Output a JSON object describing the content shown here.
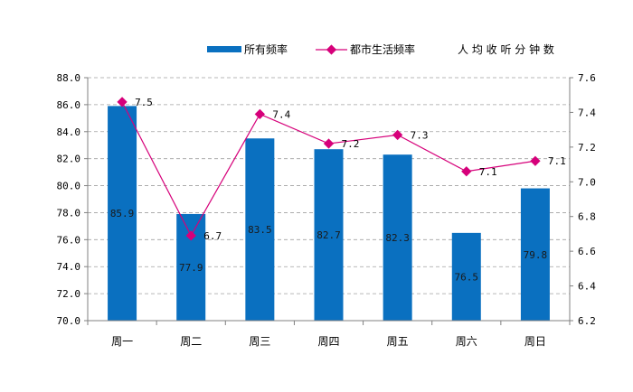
{
  "chart_data": {
    "type": "bar+line",
    "categories": [
      "周一",
      "周二",
      "周三",
      "周四",
      "周五",
      "周六",
      "周日"
    ],
    "series": [
      {
        "name": "所有频率",
        "type": "bar",
        "axis": "left",
        "color": "#0a70c0",
        "values": [
          85.9,
          77.9,
          83.5,
          82.7,
          82.3,
          76.5,
          79.8
        ],
        "value_labels": [
          "85.9",
          "77.9",
          "83.5",
          "82.7",
          "82.3",
          "76.5",
          "79.8"
        ]
      },
      {
        "name": "都市生活频率",
        "type": "line",
        "axis": "right",
        "color": "#d6007a",
        "values": [
          7.46,
          6.69,
          7.39,
          7.22,
          7.27,
          7.06,
          7.12
        ],
        "value_labels": [
          "7.5",
          "6.7",
          "7.4",
          "7.2",
          "7.3",
          "7.1",
          "7.1"
        ]
      }
    ],
    "left_axis": {
      "range": [
        70,
        88
      ],
      "ticks": [
        "70.0",
        "72.0",
        "74.0",
        "76.0",
        "78.0",
        "80.0",
        "82.0",
        "84.0",
        "86.0",
        "88.0"
      ]
    },
    "right_axis": {
      "range": [
        6.2,
        7.6
      ],
      "ticks": [
        "6.2",
        "6.4",
        "6.6",
        "6.8",
        "7.0",
        "7.2",
        "7.4",
        "7.6"
      ]
    },
    "legend": {
      "position": "top-right",
      "extra_label": "人 均 收 听 分 钟 数"
    },
    "grid": "horizontal-dashed"
  }
}
